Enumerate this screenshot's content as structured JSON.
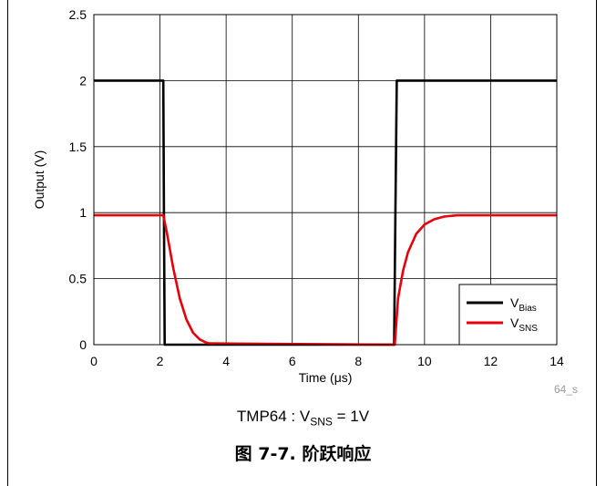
{
  "chart_data": {
    "type": "line",
    "xlabel": "Time (μs)",
    "ylabel": "Output (V)",
    "xlim": [
      0,
      14
    ],
    "ylim": [
      0,
      2.5
    ],
    "x_ticks": [
      "0",
      "2",
      "4",
      "6",
      "8",
      "10",
      "12",
      "14"
    ],
    "y_ticks": [
      "0",
      "0.5",
      "1",
      "1.5",
      "2",
      "2.5"
    ],
    "grid": true,
    "legend_position": "bottom-right",
    "series": [
      {
        "name": "VBias",
        "name_main": "V",
        "name_sub": "Bias",
        "color": "#000000",
        "x": [
          0,
          2.1,
          2.12,
          2.14,
          9.08,
          9.12,
          9.16,
          14
        ],
        "y": [
          2.0,
          2.0,
          1.0,
          0.0,
          0.0,
          1.0,
          2.0,
          2.0
        ]
      },
      {
        "name": "VSNS",
        "name_main": "V",
        "name_sub": "SNS",
        "color": "#e8000b",
        "x": [
          0,
          2.1,
          2.2,
          2.4,
          2.6,
          2.8,
          3.0,
          3.2,
          3.4,
          3.5,
          9.05,
          9.1,
          9.2,
          9.35,
          9.5,
          9.75,
          10.0,
          10.3,
          10.6,
          11.0,
          11.5,
          12.0,
          14.0
        ],
        "y": [
          0.98,
          0.98,
          0.86,
          0.58,
          0.35,
          0.19,
          0.09,
          0.04,
          0.015,
          0.01,
          0.0,
          0.0,
          0.35,
          0.56,
          0.7,
          0.84,
          0.91,
          0.95,
          0.97,
          0.98,
          0.98,
          0.98,
          0.98
        ]
      }
    ]
  },
  "figure_id": "64_s",
  "sub_caption": {
    "prefix": "TMP64 : V",
    "sub": "SNS",
    "suffix": " = 1V"
  },
  "figure_caption": "图 7-7. 阶跃响应"
}
